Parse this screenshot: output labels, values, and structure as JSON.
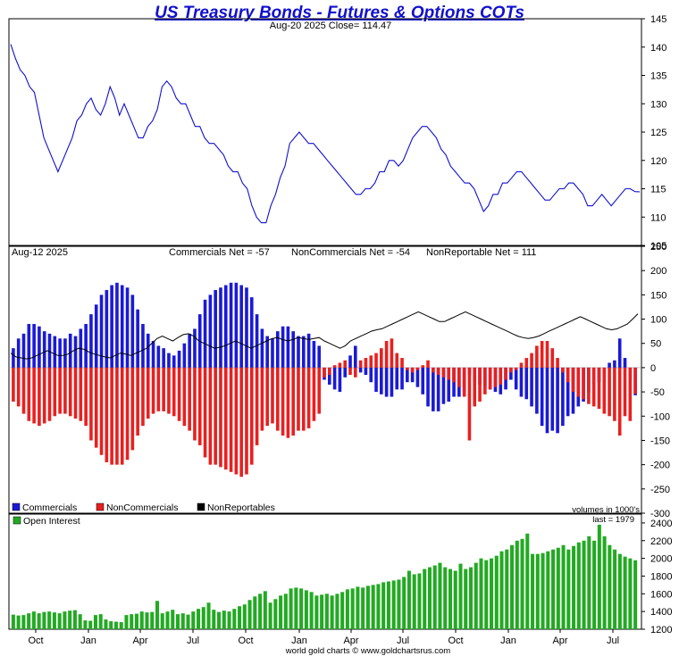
{
  "title": "US Treasury Bonds - Futures & Options COTs",
  "footer": "world gold charts © www.goldchartsrus.com",
  "month_labels": [
    "Oct",
    "Jan",
    "Apr",
    "Jul",
    "Oct",
    "Jan",
    "Apr",
    "Jul",
    "Oct",
    "Jan",
    "Apr",
    "Jul"
  ],
  "colors": {
    "price": "#1010d0",
    "commercials": "#1a1ad6",
    "noncommercials": "#e82020",
    "nonreportables": "#000000",
    "open_interest": "#22aa22"
  },
  "chart_data": [
    {
      "type": "line",
      "header": "Aug-20  2025   Close= 114.47",
      "series": [
        {
          "values": [
            140.5,
            138,
            136,
            135,
            133,
            132,
            128,
            124,
            122,
            120,
            118,
            120,
            122,
            124,
            127,
            128,
            130,
            131,
            129,
            128,
            130,
            133,
            131,
            128,
            130,
            128,
            126,
            124,
            124,
            126,
            127,
            129,
            133,
            134,
            133,
            131,
            130,
            130,
            128,
            126,
            126,
            124,
            123,
            123,
            122,
            121,
            119,
            118,
            118,
            116,
            115,
            112,
            110,
            109,
            109,
            112,
            114,
            117,
            119,
            123,
            124,
            125,
            124,
            123,
            123,
            122,
            121,
            120,
            119,
            118,
            117,
            116,
            115,
            114,
            114,
            115,
            115,
            116,
            118,
            118,
            120,
            120,
            119,
            120,
            122,
            124,
            125,
            126,
            126,
            125,
            124,
            122,
            121,
            119,
            118,
            117,
            116,
            116,
            115,
            113,
            111,
            112,
            114,
            114,
            116,
            116,
            117,
            118,
            118,
            117,
            116,
            115,
            114,
            113,
            113,
            114,
            115,
            115,
            116,
            116,
            115,
            114,
            112,
            112,
            113,
            114,
            113,
            112,
            113,
            114,
            115,
            115,
            114.5,
            114.47
          ]
        }
      ],
      "ylim": [
        105,
        145
      ],
      "yticks": [
        105,
        110,
        115,
        120,
        125,
        130,
        135,
        140,
        145
      ]
    },
    {
      "type": "bar",
      "header": {
        "date": "Aug-12  2025",
        "commercials_net": "Commercials Net = -57",
        "noncommercials_net": "NonCommercials Net = -54",
        "nonreportable_net": "NonReportable Net = 111"
      },
      "legend": [
        "Commercials",
        "NonCommercials",
        "NonReportables"
      ],
      "units_note": "volumes in 1000's",
      "series": [
        {
          "name": "Commercials",
          "values": [
            40,
            60,
            70,
            90,
            90,
            85,
            75,
            70,
            65,
            60,
            60,
            70,
            65,
            80,
            90,
            110,
            130,
            150,
            160,
            170,
            175,
            170,
            165,
            150,
            120,
            90,
            70,
            55,
            45,
            40,
            30,
            25,
            35,
            50,
            70,
            80,
            110,
            140,
            150,
            160,
            165,
            170,
            175,
            175,
            170,
            165,
            145,
            110,
            80,
            65,
            60,
            75,
            85,
            85,
            75,
            65,
            65,
            70,
            55,
            45,
            -25,
            -35,
            -45,
            -50,
            -20,
            25,
            45,
            -10,
            -15,
            -30,
            -50,
            -55,
            -60,
            -60,
            -45,
            -45,
            -30,
            -30,
            -40,
            -55,
            -80,
            -90,
            -90,
            -75,
            -70,
            -60,
            -60,
            -50,
            -15,
            -30,
            -35,
            -40,
            -45,
            -50,
            -55,
            -45,
            -25,
            -45,
            -60,
            -65,
            -80,
            -95,
            -120,
            -135,
            -130,
            -135,
            -120,
            -100,
            -95,
            -80,
            -70,
            -50,
            -35,
            -30,
            -20,
            10,
            15,
            60,
            20,
            -25,
            -57
          ]
        },
        {
          "name": "NonCommercials",
          "values": [
            -70,
            -80,
            -95,
            -110,
            -115,
            -120,
            -115,
            -110,
            -100,
            -95,
            -95,
            -100,
            -105,
            -110,
            -120,
            -150,
            -165,
            -180,
            -195,
            -200,
            -200,
            -200,
            -190,
            -170,
            -140,
            -120,
            -105,
            -95,
            -90,
            -90,
            -95,
            -100,
            -110,
            -120,
            -130,
            -150,
            -160,
            -185,
            -200,
            -200,
            -205,
            -210,
            -215,
            -220,
            -225,
            -220,
            -200,
            -160,
            -130,
            -120,
            -115,
            -130,
            -140,
            -145,
            -140,
            -130,
            -130,
            -125,
            -110,
            -95,
            -20,
            -15,
            5,
            10,
            15,
            -15,
            -20,
            15,
            20,
            25,
            30,
            40,
            55,
            60,
            30,
            20,
            -5,
            -10,
            -5,
            5,
            15,
            -10,
            -15,
            -20,
            -25,
            -30,
            -40,
            -60,
            -150,
            -80,
            -70,
            -55,
            -45,
            -40,
            -35,
            -25,
            -10,
            -5,
            10,
            20,
            30,
            45,
            55,
            55,
            40,
            20,
            -10,
            -30,
            -50,
            -60,
            -65,
            -75,
            -80,
            -85,
            -95,
            -100,
            -110,
            -140,
            -100,
            -110,
            -54
          ]
        },
        {
          "name": "NonReportables",
          "values": [
            30,
            22,
            20,
            18,
            20,
            25,
            30,
            35,
            30,
            25,
            25,
            28,
            35,
            40,
            38,
            32,
            28,
            25,
            22,
            20,
            25,
            30,
            28,
            25,
            30,
            35,
            40,
            50,
            60,
            65,
            60,
            55,
            62,
            68,
            70,
            65,
            55,
            50,
            45,
            40,
            42,
            45,
            50,
            55,
            50,
            45,
            40,
            45,
            50,
            55,
            60,
            62,
            58,
            55,
            58,
            62,
            60,
            58,
            60,
            62,
            55,
            50,
            45,
            40,
            45,
            55,
            60,
            65,
            70,
            75,
            78,
            80,
            85,
            90,
            95,
            100,
            105,
            110,
            115,
            110,
            105,
            100,
            95,
            95,
            100,
            105,
            110,
            115,
            110,
            105,
            100,
            95,
            90,
            85,
            80,
            75,
            70,
            65,
            62,
            60,
            62,
            65,
            70,
            75,
            80,
            85,
            90,
            95,
            100,
            105,
            100,
            95,
            90,
            85,
            80,
            78,
            80,
            85,
            90,
            100,
            111
          ]
        }
      ],
      "ylim": [
        -300,
        250
      ],
      "yticks": [
        -300,
        -250,
        -200,
        -150,
        -100,
        -50,
        0,
        50,
        100,
        150,
        200,
        250
      ]
    },
    {
      "type": "bar",
      "legend": [
        "Open Interest"
      ],
      "last_label": "last = 1979",
      "series": [
        {
          "name": "Open Interest",
          "values": [
            1365,
            1355,
            1360,
            1380,
            1400,
            1380,
            1395,
            1400,
            1390,
            1380,
            1400,
            1410,
            1415,
            1370,
            1300,
            1295,
            1360,
            1370,
            1310,
            1290,
            1285,
            1280,
            1360,
            1370,
            1375,
            1400,
            1390,
            1395,
            1520,
            1380,
            1400,
            1420,
            1370,
            1380,
            1365,
            1400,
            1430,
            1450,
            1500,
            1420,
            1395,
            1410,
            1400,
            1430,
            1460,
            1480,
            1530,
            1570,
            1600,
            1630,
            1500,
            1540,
            1580,
            1600,
            1660,
            1670,
            1660,
            1640,
            1620,
            1580,
            1590,
            1600,
            1580,
            1600,
            1620,
            1650,
            1660,
            1680,
            1670,
            1690,
            1700,
            1710,
            1730,
            1740,
            1750,
            1760,
            1790,
            1860,
            1820,
            1830,
            1880,
            1900,
            1920,
            1950,
            1900,
            1880,
            1860,
            1940,
            1880,
            1900,
            1950,
            2000,
            1980,
            2000,
            2030,
            2080,
            2100,
            2150,
            2200,
            2220,
            2280,
            2050,
            2050,
            2060,
            2080,
            2100,
            2120,
            2150,
            2100,
            2140,
            2180,
            2200,
            2250,
            2200,
            2380,
            2250,
            2150,
            2100,
            2050,
            2020,
            2000,
            1979
          ]
        }
      ],
      "ylim": [
        1200,
        2500
      ],
      "yticks": [
        1200,
        1400,
        1600,
        1800,
        2000,
        2200,
        2400
      ]
    }
  ]
}
